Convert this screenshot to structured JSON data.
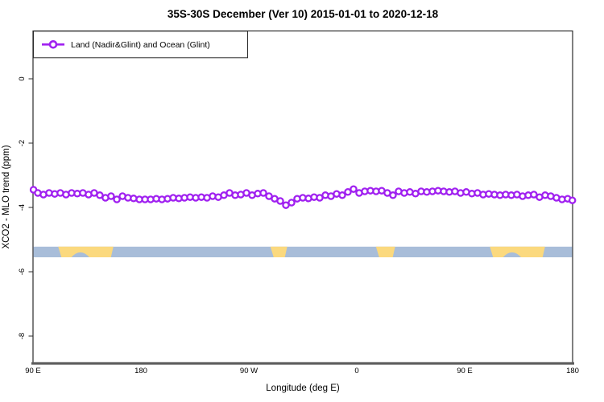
{
  "window": {
    "background": "#ffffff"
  },
  "chart_data": {
    "type": "line",
    "title": "35S-30S December (Ver 10)   2015-01-01 to 2020-12-18",
    "xlabel": "Longitude (deg E)",
    "ylabel": "XCO2 - MLO trend (ppm)",
    "grid": false,
    "legend_position": "top-left",
    "legend": [
      {
        "label": "Land (Nadir&Glint) and Ocean (Glint)",
        "color": "#A020F0",
        "marker": "open-circle"
      }
    ],
    "xlim": [
      90,
      540
    ],
    "ylim": [
      -8.85,
      1.49
    ],
    "x_ticks": [
      {
        "label": "90 E",
        "lon": 90
      },
      {
        "label": "180",
        "lon": 180
      },
      {
        "label": "90 W",
        "lon": 270
      },
      {
        "label": "0",
        "lon": 360
      },
      {
        "label": "90 E",
        "lon": 450
      },
      {
        "label": "180",
        "lon": 540
      }
    ],
    "y_ticks": [
      {
        "label": "0",
        "value": 0
      },
      {
        "label": "-2",
        "value": -2
      },
      {
        "label": "-4",
        "value": -4
      },
      {
        "label": "-6",
        "value": -6
      },
      {
        "label": "-8",
        "value": -8
      }
    ],
    "series": [
      {
        "name": "Land (Nadir&Glint) and Ocean (Glint)",
        "color": "#A020F0",
        "marker": "open-circle",
        "x": [
          90.4,
          94.0,
          98.7,
          103.4,
          108.1,
          112.8,
          117.5,
          122.2,
          126.9,
          131.6,
          136.3,
          141.0,
          145.7,
          150.4,
          155.1,
          159.9,
          164.6,
          169.2,
          173.9,
          178.7,
          183.4,
          188.1,
          192.8,
          197.5,
          202.2,
          206.9,
          211.6,
          216.3,
          221.0,
          225.7,
          230.4,
          235.1,
          239.8,
          244.5,
          249.2,
          253.9,
          258.6,
          263.3,
          268.0,
          272.7,
          277.4,
          282.1,
          286.8,
          291.5,
          296.2,
          300.9,
          305.6,
          310.3,
          315.0,
          319.7,
          324.4,
          329.1,
          333.8,
          338.5,
          343.2,
          347.9,
          352.6,
          357.3,
          362.0,
          366.7,
          371.4,
          376.1,
          380.8,
          385.5,
          390.2,
          394.9,
          399.6,
          404.3,
          409.0,
          413.7,
          418.4,
          423.1,
          427.8,
          432.5,
          437.2,
          441.9,
          446.6,
          451.3,
          456.0,
          460.7,
          465.4,
          470.1,
          474.8,
          479.5,
          484.2,
          488.9,
          493.6,
          498.3,
          503.0,
          507.7,
          512.4,
          517.1,
          521.8,
          526.5,
          531.2,
          535.9,
          539.8
        ],
        "values": [
          -3.45,
          -3.55,
          -3.6,
          -3.55,
          -3.58,
          -3.55,
          -3.6,
          -3.55,
          -3.57,
          -3.55,
          -3.6,
          -3.55,
          -3.62,
          -3.7,
          -3.65,
          -3.75,
          -3.65,
          -3.7,
          -3.72,
          -3.75,
          -3.75,
          -3.75,
          -3.73,
          -3.75,
          -3.73,
          -3.7,
          -3.72,
          -3.7,
          -3.68,
          -3.7,
          -3.68,
          -3.7,
          -3.65,
          -3.68,
          -3.62,
          -3.55,
          -3.62,
          -3.6,
          -3.55,
          -3.62,
          -3.57,
          -3.55,
          -3.65,
          -3.73,
          -3.8,
          -3.93,
          -3.85,
          -3.73,
          -3.7,
          -3.72,
          -3.68,
          -3.7,
          -3.62,
          -3.65,
          -3.58,
          -3.62,
          -3.52,
          -3.43,
          -3.55,
          -3.5,
          -3.48,
          -3.5,
          -3.48,
          -3.55,
          -3.62,
          -3.5,
          -3.55,
          -3.52,
          -3.57,
          -3.5,
          -3.52,
          -3.5,
          -3.48,
          -3.5,
          -3.52,
          -3.5,
          -3.55,
          -3.52,
          -3.57,
          -3.55,
          -3.6,
          -3.58,
          -3.6,
          -3.62,
          -3.6,
          -3.62,
          -3.6,
          -3.65,
          -3.62,
          -3.6,
          -3.68,
          -3.62,
          -3.65,
          -3.7,
          -3.75,
          -3.73,
          -3.78
        ]
      }
    ],
    "surface_band": {
      "description": "land/ocean strip for latitude band 35S-30S",
      "top": -5.22,
      "bottom": -5.55,
      "ocean_color": "#a8bdd9",
      "land_color": "#fbd97e",
      "land_segments": [
        {
          "start": 111,
          "end": 157
        },
        {
          "start": 288,
          "end": 302
        },
        {
          "start": 376,
          "end": 392
        },
        {
          "start": 471,
          "end": 517
        }
      ],
      "ocean_bights": [
        {
          "start": 122,
          "end": 137
        },
        {
          "start": 482,
          "end": 497
        }
      ]
    }
  }
}
